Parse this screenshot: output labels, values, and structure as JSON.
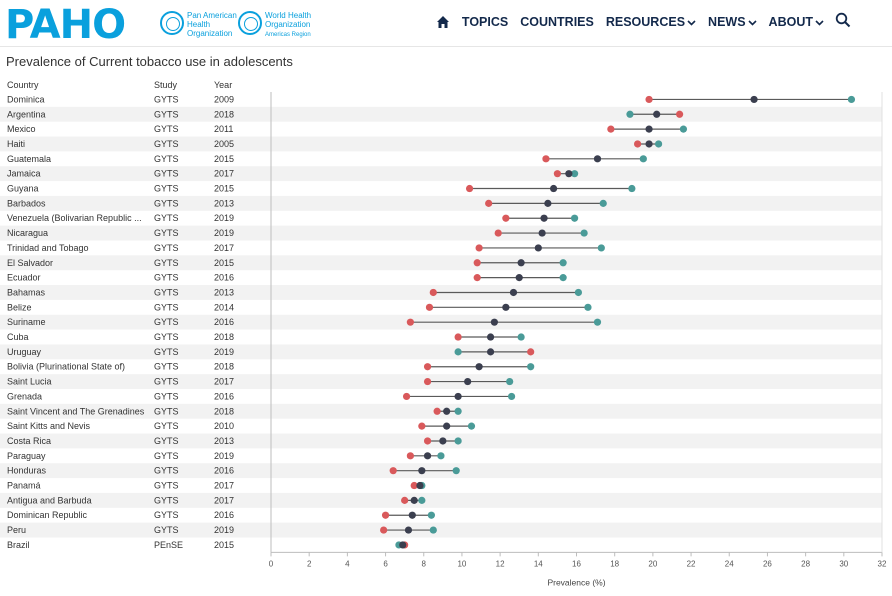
{
  "header": {
    "logo_text": "PAHO",
    "paho_org": [
      "Pan American",
      "Health",
      "Organization"
    ],
    "who_org": [
      "World Health",
      "Organization"
    ],
    "who_region": "Americas Region",
    "nav": [
      {
        "label": "TOPICS",
        "has_menu": false
      },
      {
        "label": "COUNTRIES",
        "has_menu": false
      },
      {
        "label": "RESOURCES",
        "has_menu": true
      },
      {
        "label": "NEWS",
        "has_menu": true
      },
      {
        "label": "ABOUT",
        "has_menu": true
      }
    ]
  },
  "page_title": "Prevalence of Current tobacco use in adolescents",
  "colors": {
    "female": "#d9595b",
    "male": "#4a9b98",
    "total": "#3b3f4f",
    "stripe": "#f2f2f2",
    "connector": "#5a5a5a"
  },
  "chart_data": {
    "type": "dot-range",
    "title": "Prevalence of Current tobacco use in adolescents",
    "xlabel": "Prevalence (%)",
    "xlim": [
      0,
      32
    ],
    "xticks": [
      0,
      2,
      4,
      6,
      8,
      10,
      12,
      14,
      16,
      18,
      20,
      22,
      24,
      26,
      28,
      30,
      32
    ],
    "columns": [
      "Country",
      "Study",
      "Year"
    ],
    "rows": [
      {
        "country": "Dominica",
        "study": "GYTS",
        "year": "2009",
        "red": 19.8,
        "dark": 25.3,
        "teal": 30.4
      },
      {
        "country": "Argentina",
        "study": "GYTS",
        "year": "2018",
        "red": 21.4,
        "dark": 20.2,
        "teal": 18.8
      },
      {
        "country": "Mexico",
        "study": "GYTS",
        "year": "2011",
        "red": 17.8,
        "dark": 19.8,
        "teal": 21.6
      },
      {
        "country": "Haiti",
        "study": "GYTS",
        "year": "2005",
        "red": 19.2,
        "dark": 19.8,
        "teal": 20.3
      },
      {
        "country": "Guatemala",
        "study": "GYTS",
        "year": "2015",
        "red": 14.4,
        "dark": 17.1,
        "teal": 19.5
      },
      {
        "country": "Jamaica",
        "study": "GYTS",
        "year": "2017",
        "red": 15.0,
        "dark": 15.6,
        "teal": 15.9
      },
      {
        "country": "Guyana",
        "study": "GYTS",
        "year": "2015",
        "red": 10.4,
        "dark": 14.8,
        "teal": 18.9
      },
      {
        "country": "Barbados",
        "study": "GYTS",
        "year": "2013",
        "red": 11.4,
        "dark": 14.5,
        "teal": 17.4
      },
      {
        "country": "Venezuela (Bolivarian Republic ...",
        "study": "GYTS",
        "year": "2019",
        "red": 12.3,
        "dark": 14.3,
        "teal": 15.9
      },
      {
        "country": "Nicaragua",
        "study": "GYTS",
        "year": "2019",
        "red": 11.9,
        "dark": 14.2,
        "teal": 16.4
      },
      {
        "country": "Trinidad and Tobago",
        "study": "GYTS",
        "year": "2017",
        "red": 10.9,
        "dark": 14.0,
        "teal": 17.3
      },
      {
        "country": "El Salvador",
        "study": "GYTS",
        "year": "2015",
        "red": 10.8,
        "dark": 13.1,
        "teal": 15.3
      },
      {
        "country": "Ecuador",
        "study": "GYTS",
        "year": "2016",
        "red": 10.8,
        "dark": 13.0,
        "teal": 15.3
      },
      {
        "country": "Bahamas",
        "study": "GYTS",
        "year": "2013",
        "red": 8.5,
        "dark": 12.7,
        "teal": 16.1
      },
      {
        "country": "Belize",
        "study": "GYTS",
        "year": "2014",
        "red": 8.3,
        "dark": 12.3,
        "teal": 16.6
      },
      {
        "country": "Suriname",
        "study": "GYTS",
        "year": "2016",
        "red": 7.3,
        "dark": 11.7,
        "teal": 17.1
      },
      {
        "country": "Cuba",
        "study": "GYTS",
        "year": "2018",
        "red": 9.8,
        "dark": 11.5,
        "teal": 13.1
      },
      {
        "country": "Uruguay",
        "study": "GYTS",
        "year": "2019",
        "red": 13.6,
        "dark": 11.5,
        "teal": 9.8
      },
      {
        "country": "Bolivia (Plurinational State of)",
        "study": "GYTS",
        "year": "2018",
        "red": 8.2,
        "dark": 10.9,
        "teal": 13.6
      },
      {
        "country": "Saint Lucia",
        "study": "GYTS",
        "year": "2017",
        "red": 8.2,
        "dark": 10.3,
        "teal": 12.5
      },
      {
        "country": "Grenada",
        "study": "GYTS",
        "year": "2016",
        "red": 7.1,
        "dark": 9.8,
        "teal": 12.6
      },
      {
        "country": "Saint Vincent and The Grenadines",
        "study": "GYTS",
        "year": "2018",
        "red": 8.7,
        "dark": 9.2,
        "teal": 9.8
      },
      {
        "country": "Saint Kitts and Nevis",
        "study": "GYTS",
        "year": "2010",
        "red": 7.9,
        "dark": 9.2,
        "teal": 10.5
      },
      {
        "country": "Costa Rica",
        "study": "GYTS",
        "year": "2013",
        "red": 8.2,
        "dark": 9.0,
        "teal": 9.8
      },
      {
        "country": "Paraguay",
        "study": "GYTS",
        "year": "2019",
        "red": 7.3,
        "dark": 8.2,
        "teal": 8.9
      },
      {
        "country": "Honduras",
        "study": "GYTS",
        "year": "2016",
        "red": 6.4,
        "dark": 7.9,
        "teal": 9.7
      },
      {
        "country": "Panamá",
        "study": "GYTS",
        "year": "2017",
        "red": 7.5,
        "dark": 7.8,
        "teal": 7.9
      },
      {
        "country": "Antigua and Barbuda",
        "study": "GYTS",
        "year": "2017",
        "red": 7.0,
        "dark": 7.5,
        "teal": 7.9
      },
      {
        "country": "Dominican Republic",
        "study": "GYTS",
        "year": "2016",
        "red": 6.0,
        "dark": 7.4,
        "teal": 8.4
      },
      {
        "country": "Peru",
        "study": "GYTS",
        "year": "2019",
        "red": 5.9,
        "dark": 7.2,
        "teal": 8.5
      },
      {
        "country": "Brazil",
        "study": "PEnSE",
        "year": "2015",
        "red": 7.0,
        "dark": 6.9,
        "teal": 6.7
      }
    ]
  }
}
